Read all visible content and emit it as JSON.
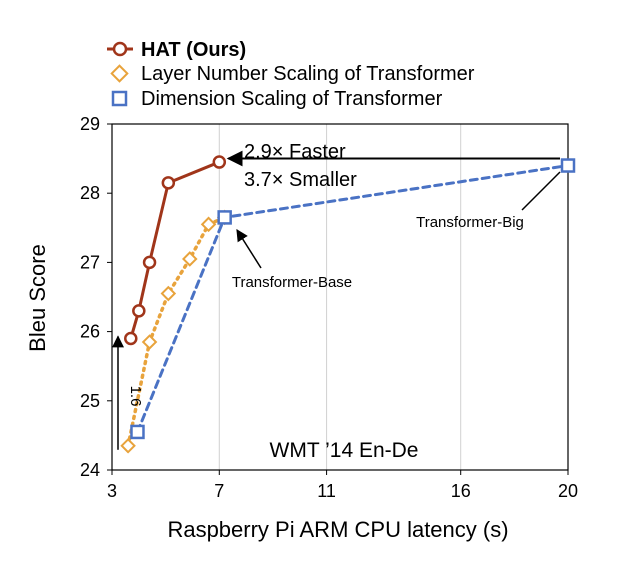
{
  "chart_data": {
    "type": "line",
    "title": "",
    "xlabel": "Raspberry Pi ARM CPU latency (s)",
    "ylabel": "Bleu Score",
    "xlim": [
      3,
      20
    ],
    "ylim": [
      24,
      29
    ],
    "xticks": [
      3,
      7,
      11,
      16,
      20
    ],
    "yticks": [
      24,
      25,
      26,
      27,
      28,
      29
    ],
    "grid": "vertical",
    "legend_position": "top-left",
    "inset_label": "WMT ’14 En-De",
    "series": [
      {
        "name": "HAT (Ours)",
        "color": "#a0351a",
        "marker": "circle",
        "line": "solid",
        "x": [
          3.7,
          4.0,
          4.4,
          5.1,
          7.0
        ],
        "y": [
          25.9,
          26.3,
          27.0,
          28.15,
          28.45
        ]
      },
      {
        "name": "Layer Number Scaling of Transformer",
        "color": "#e8a33c",
        "marker": "diamond",
        "line": "dotted",
        "x": [
          3.6,
          4.4,
          5.1,
          5.9,
          6.6,
          7.2
        ],
        "y": [
          24.35,
          25.85,
          26.55,
          27.05,
          27.55,
          27.65
        ]
      },
      {
        "name": "Dimension Scaling of Transformer",
        "color": "#4a72c4",
        "marker": "square",
        "line": "dashed",
        "x": [
          3.95,
          7.2,
          20.0
        ],
        "y": [
          24.55,
          27.65,
          28.4
        ]
      }
    ],
    "annotations": [
      {
        "text": "2.9× Faster",
        "kind": "arrow-horizontal",
        "from": [
          20.0,
          28.4
        ],
        "to": [
          7.0,
          28.4
        ]
      },
      {
        "text": "3.7× Smaller"
      },
      {
        "text": "Transformer-Big",
        "target": [
          20.0,
          28.4
        ]
      },
      {
        "text": "Transformer-Base",
        "target": [
          7.2,
          27.65
        ]
      },
      {
        "text": "1.6",
        "kind": "arrow-vertical",
        "from": [
          3.0,
          24.35
        ],
        "to": [
          3.0,
          25.9
        ]
      }
    ]
  }
}
